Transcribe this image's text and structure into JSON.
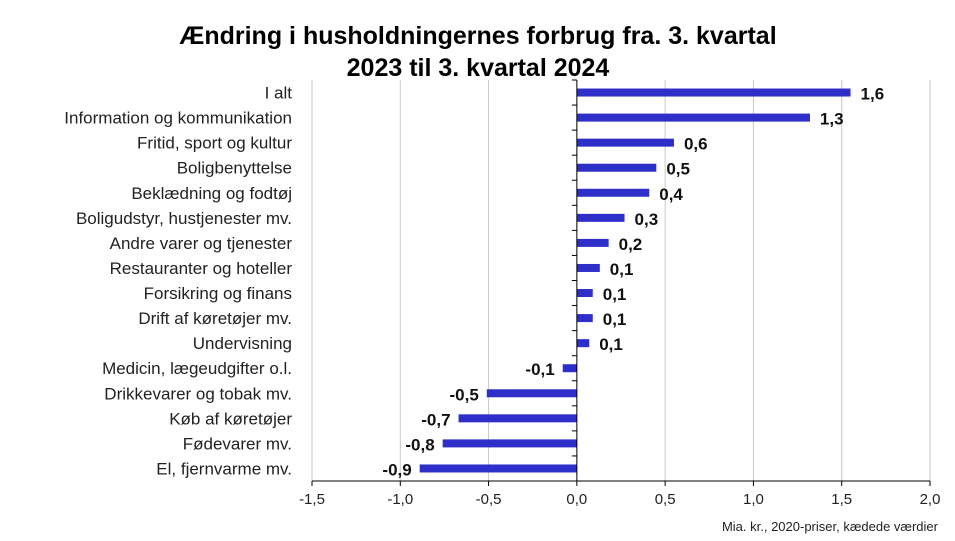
{
  "chart_data": {
    "type": "bar",
    "orientation": "horizontal",
    "title": [
      "Ændring i husholdningernes forbrug fra. 3. kvartal",
      "2023 til 3. kvartal 2024"
    ],
    "categories": [
      "I alt",
      "Information og kommunikation",
      "Fritid, sport og kultur",
      "Boligbenyttelse",
      "Beklædning og fodtøj",
      "Boligudstyr, hustjenester mv.",
      "Andre varer og tjenester",
      "Restauranter og hoteller",
      "Forsikring og finans",
      "Drift af køretøjer mv.",
      "Undervisning",
      "Medicin, lægeudgifter o.l.",
      "Drikkevarer og tobak mv.",
      "Køb af køretøjer",
      "Fødevarer mv.",
      "El, fjernvarme mv."
    ],
    "values": [
      1.55,
      1.32,
      0.55,
      0.45,
      0.41,
      0.27,
      0.18,
      0.13,
      0.09,
      0.09,
      0.07,
      -0.08,
      -0.51,
      -0.67,
      -0.76,
      -0.89
    ],
    "value_labels": [
      "1,6",
      "1,3",
      "0,6",
      "0,5",
      "0,4",
      "0,3",
      "0,2",
      "0,1",
      "0,1",
      "0,1",
      "0,1",
      "-0,1",
      "-0,5",
      "-0,7",
      "-0,8",
      "-0,9"
    ],
    "xlim": [
      -1.5,
      2.0
    ],
    "xticks": [
      -1.5,
      -1.0,
      -0.5,
      0.0,
      0.5,
      1.0,
      1.5,
      2.0
    ],
    "xtick_labels": [
      "-1,5",
      "-1,0",
      "-0,5",
      "0,0",
      "0,5",
      "1,0",
      "1,5",
      "2,0"
    ],
    "xlabel": "",
    "ylabel": "",
    "note": "Mia. kr., 2020-priser, kædede værdier",
    "grid": "vertical",
    "bar_color": "#2e2ec8",
    "grid_color": "#c8c8c8"
  }
}
